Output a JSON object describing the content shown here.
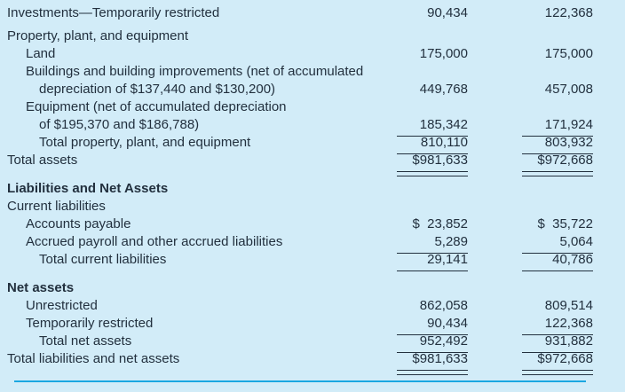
{
  "colors": {
    "background": "#d2ecf8",
    "text": "#22303e",
    "rule": "#22303e",
    "bottom_divider": "#1ba7e1"
  },
  "table": {
    "columns": [
      "current_year",
      "prior_year"
    ],
    "rows": [
      {
        "label_lines": [
          {
            "text": "Investments—Temporarily restricted",
            "indent": 0
          }
        ],
        "col1": "90,434",
        "col2": "122,368",
        "bold": false,
        "rule": "none",
        "gap_before": 0
      },
      {
        "label_lines": [
          {
            "text": "Property, plant, and equipment",
            "indent": 0
          }
        ],
        "col1": "",
        "col2": "",
        "bold": false,
        "rule": "none",
        "gap_before": 6
      },
      {
        "label_lines": [
          {
            "text": "Land",
            "indent": 1
          }
        ],
        "col1": "175,000",
        "col2": "175,000",
        "bold": false,
        "rule": "none",
        "gap_before": 0
      },
      {
        "label_lines": [
          {
            "text": "Buildings and building improvements (net of accumulated",
            "indent": 1
          },
          {
            "text": "depreciation of $137,440 and $130,200)",
            "indent": 2
          }
        ],
        "col1": "449,768",
        "col2": "457,008",
        "bold": false,
        "rule": "none",
        "gap_before": 0
      },
      {
        "label_lines": [
          {
            "text": "Equipment (net of accumulated depreciation",
            "indent": 1
          },
          {
            "text": "of $195,370 and $186,788)",
            "indent": 2
          }
        ],
        "col1": "185,342",
        "col2": "171,924",
        "bold": false,
        "rule": "single",
        "gap_before": 0
      },
      {
        "label_lines": [
          {
            "text": "Total property, plant, and equipment",
            "indent": 2
          }
        ],
        "col1": "810,110",
        "col2": "803,932",
        "bold": false,
        "rule": "single",
        "gap_before": 0
      },
      {
        "label_lines": [
          {
            "text": "Total assets",
            "indent": 0
          }
        ],
        "col1": "$981,633",
        "col2": "$972,668",
        "bold": false,
        "rule": "double",
        "gap_before": 0
      },
      {
        "label_lines": [
          {
            "text": "Liabilities and Net Assets",
            "indent": 0
          }
        ],
        "col1": "",
        "col2": "",
        "bold": true,
        "rule": "none",
        "gap_before": 12
      },
      {
        "label_lines": [
          {
            "text": "Current liabilities",
            "indent": 0
          }
        ],
        "col1": "",
        "col2": "",
        "bold": false,
        "rule": "none",
        "gap_before": 0
      },
      {
        "label_lines": [
          {
            "text": "Accounts payable",
            "indent": 1
          }
        ],
        "col1": "$  23,852",
        "col2": "$  35,722",
        "bold": false,
        "rule": "none",
        "gap_before": 0
      },
      {
        "label_lines": [
          {
            "text": "Accrued payroll and other accrued liabilities",
            "indent": 1
          }
        ],
        "col1": "5,289",
        "col2": "5,064",
        "bold": false,
        "rule": "single",
        "gap_before": 0
      },
      {
        "label_lines": [
          {
            "text": "Total current liabilities",
            "indent": 2
          }
        ],
        "col1": "29,141",
        "col2": "40,786",
        "bold": false,
        "rule": "single",
        "gap_before": 0
      },
      {
        "label_lines": [
          {
            "text": "Net assets",
            "indent": 0
          }
        ],
        "col1": "",
        "col2": "",
        "bold": true,
        "rule": "none",
        "gap_before": 12
      },
      {
        "label_lines": [
          {
            "text": "Unrestricted",
            "indent": 1
          }
        ],
        "col1": "862,058",
        "col2": "809,514",
        "bold": false,
        "rule": "none",
        "gap_before": 0
      },
      {
        "label_lines": [
          {
            "text": "Temporarily restricted",
            "indent": 1
          }
        ],
        "col1": "90,434",
        "col2": "122,368",
        "bold": false,
        "rule": "single",
        "gap_before": 0
      },
      {
        "label_lines": [
          {
            "text": "Total net assets",
            "indent": 2
          }
        ],
        "col1": "952,492",
        "col2": "931,882",
        "bold": false,
        "rule": "single",
        "gap_before": 0
      },
      {
        "label_lines": [
          {
            "text": "Total liabilities and net assets",
            "indent": 0
          }
        ],
        "col1": "$981,633",
        "col2": "$972,668",
        "bold": false,
        "rule": "double",
        "gap_before": 0
      }
    ]
  }
}
